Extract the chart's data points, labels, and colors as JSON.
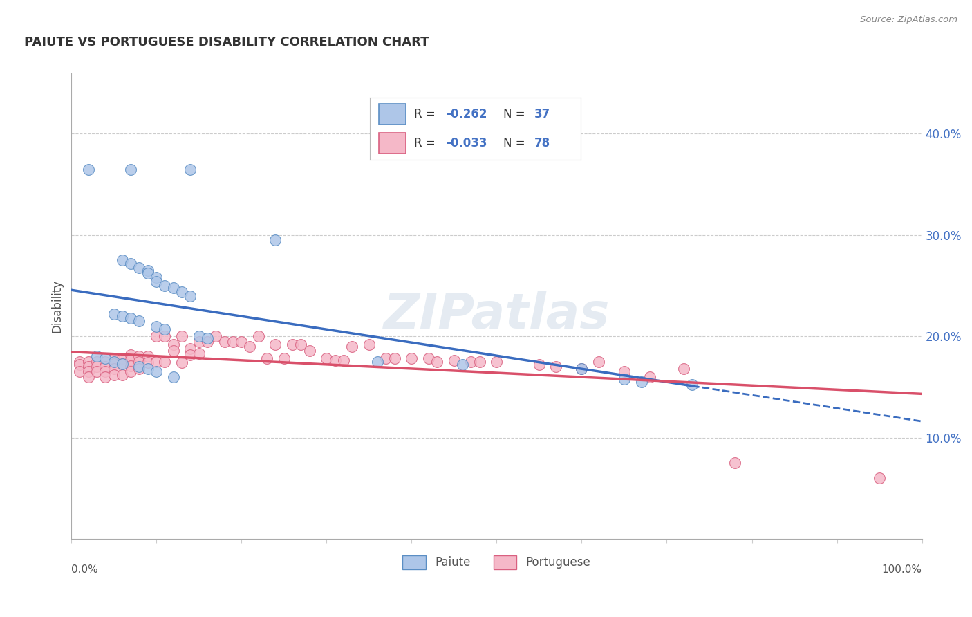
{
  "title": "PAIUTE VS PORTUGUESE DISABILITY CORRELATION CHART",
  "source": "Source: ZipAtlas.com",
  "ylabel": "Disability",
  "paiute_R": -0.262,
  "paiute_N": 37,
  "portuguese_R": -0.033,
  "portuguese_N": 78,
  "xlim": [
    0.0,
    1.0
  ],
  "ylim": [
    0.0,
    0.46
  ],
  "yticks": [
    0.1,
    0.2,
    0.3,
    0.4
  ],
  "ytick_labels": [
    "10.0%",
    "20.0%",
    "30.0%",
    "40.0%"
  ],
  "paiute_color": "#aec6e8",
  "paiute_edge": "#5b8ec4",
  "portuguese_color": "#f5b8c8",
  "portuguese_edge": "#d96080",
  "trend_paiute_color": "#3a6cbf",
  "trend_portuguese_color": "#d9506a",
  "background_color": "#ffffff",
  "legend_box_color": "#cccccc",
  "paiute_x": [
    0.02,
    0.07,
    0.14,
    0.24,
    0.06,
    0.07,
    0.08,
    0.09,
    0.09,
    0.1,
    0.1,
    0.11,
    0.12,
    0.13,
    0.14,
    0.05,
    0.06,
    0.07,
    0.08,
    0.1,
    0.11,
    0.15,
    0.16,
    0.03,
    0.04,
    0.05,
    0.06,
    0.08,
    0.09,
    0.1,
    0.12,
    0.36,
    0.46,
    0.6,
    0.65,
    0.67,
    0.73
  ],
  "paiute_y": [
    0.365,
    0.365,
    0.365,
    0.295,
    0.275,
    0.272,
    0.268,
    0.265,
    0.262,
    0.258,
    0.254,
    0.25,
    0.248,
    0.244,
    0.24,
    0.222,
    0.22,
    0.218,
    0.215,
    0.21,
    0.207,
    0.2,
    0.198,
    0.18,
    0.178,
    0.175,
    0.173,
    0.17,
    0.168,
    0.165,
    0.16,
    0.175,
    0.172,
    0.168,
    0.158,
    0.155,
    0.152
  ],
  "portuguese_x": [
    0.01,
    0.01,
    0.01,
    0.02,
    0.02,
    0.02,
    0.02,
    0.03,
    0.03,
    0.03,
    0.04,
    0.04,
    0.04,
    0.04,
    0.05,
    0.05,
    0.05,
    0.05,
    0.06,
    0.06,
    0.06,
    0.07,
    0.07,
    0.07,
    0.07,
    0.08,
    0.08,
    0.08,
    0.09,
    0.09,
    0.1,
    0.1,
    0.11,
    0.11,
    0.12,
    0.12,
    0.13,
    0.13,
    0.14,
    0.14,
    0.15,
    0.15,
    0.16,
    0.17,
    0.18,
    0.19,
    0.2,
    0.21,
    0.22,
    0.23,
    0.24,
    0.25,
    0.26,
    0.27,
    0.28,
    0.3,
    0.31,
    0.32,
    0.33,
    0.35,
    0.37,
    0.38,
    0.4,
    0.42,
    0.43,
    0.45,
    0.47,
    0.48,
    0.5,
    0.55,
    0.57,
    0.6,
    0.62,
    0.65,
    0.68,
    0.72,
    0.78,
    0.95
  ],
  "portuguese_y": [
    0.175,
    0.172,
    0.165,
    0.175,
    0.17,
    0.165,
    0.16,
    0.175,
    0.17,
    0.165,
    0.175,
    0.17,
    0.165,
    0.16,
    0.178,
    0.173,
    0.168,
    0.162,
    0.178,
    0.173,
    0.162,
    0.182,
    0.177,
    0.171,
    0.165,
    0.18,
    0.175,
    0.168,
    0.18,
    0.174,
    0.2,
    0.175,
    0.2,
    0.175,
    0.192,
    0.186,
    0.2,
    0.174,
    0.188,
    0.182,
    0.195,
    0.183,
    0.195,
    0.2,
    0.195,
    0.195,
    0.195,
    0.19,
    0.2,
    0.178,
    0.192,
    0.178,
    0.192,
    0.192,
    0.186,
    0.178,
    0.176,
    0.176,
    0.19,
    0.192,
    0.178,
    0.178,
    0.178,
    0.178,
    0.175,
    0.176,
    0.175,
    0.175,
    0.175,
    0.172,
    0.17,
    0.168,
    0.175,
    0.165,
    0.16,
    0.168,
    0.075,
    0.06
  ]
}
